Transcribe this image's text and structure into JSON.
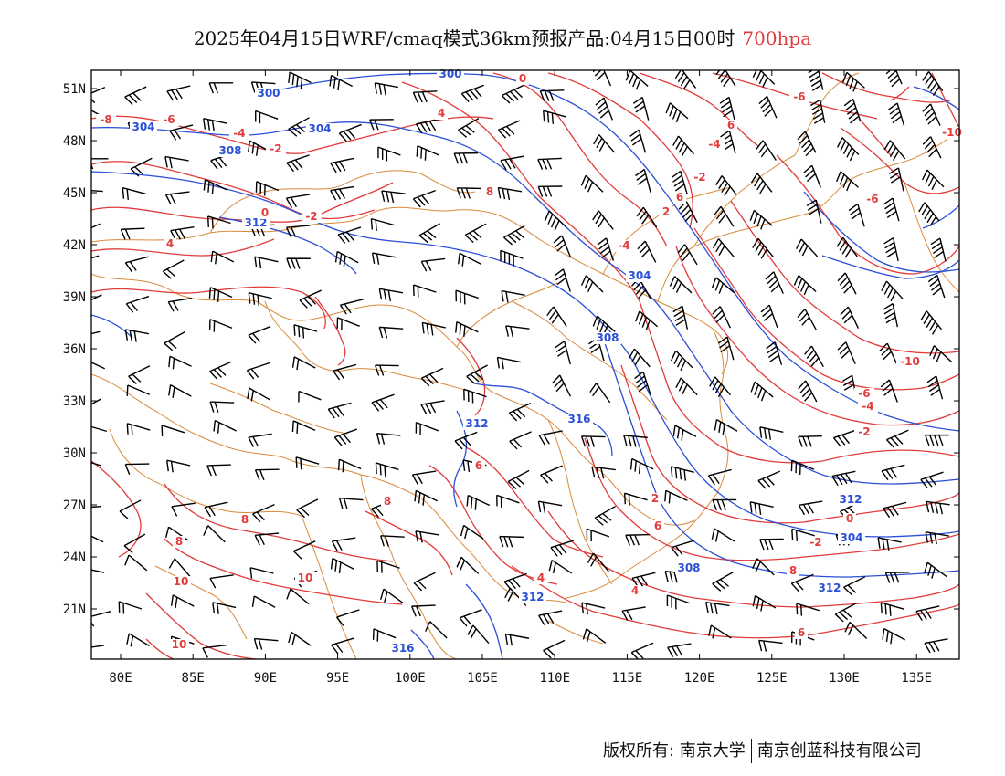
{
  "title": {
    "main": "2025年04月15日WRF/cmaq模式36km预报产品:04月15日00时",
    "level": "700hpa"
  },
  "colors": {
    "temperature": "#e23b3b",
    "height": "#2a4fd8",
    "border": "#d98a3a",
    "wind": "#000000"
  },
  "axes": {
    "lon_ticks": [
      "80E",
      "85E",
      "90E",
      "95E",
      "100E",
      "105E",
      "110E",
      "115E",
      "120E",
      "125E",
      "130E",
      "135E"
    ],
    "lat_ticks": [
      "51N",
      "48N",
      "45N",
      "42N",
      "39N",
      "36N",
      "33N",
      "30N",
      "27N",
      "24N",
      "21N"
    ]
  },
  "contour_labels": {
    "height": [
      "300",
      "300",
      "304",
      "304",
      "308",
      "312",
      "304",
      "308",
      "312",
      "316",
      "312",
      "304",
      "308",
      "312",
      "312",
      "316"
    ],
    "temperature": [
      "0",
      "-8",
      "-6",
      "-6",
      "-4",
      "-2",
      "4",
      "-4",
      "-2",
      "-2",
      "0",
      "2",
      "4",
      "-4",
      "8",
      "-10",
      "-6",
      "-10",
      "-6",
      "-4",
      "-2",
      "2",
      "0",
      "8",
      "8",
      "6",
      "6",
      "8",
      "10",
      "10",
      "10",
      "8",
      "4",
      "6",
      "4",
      "6",
      "-2",
      "6"
    ]
  },
  "footer": {
    "left": "版权所有: 南京大学",
    "right": "南京创蓝科技有限公司"
  }
}
